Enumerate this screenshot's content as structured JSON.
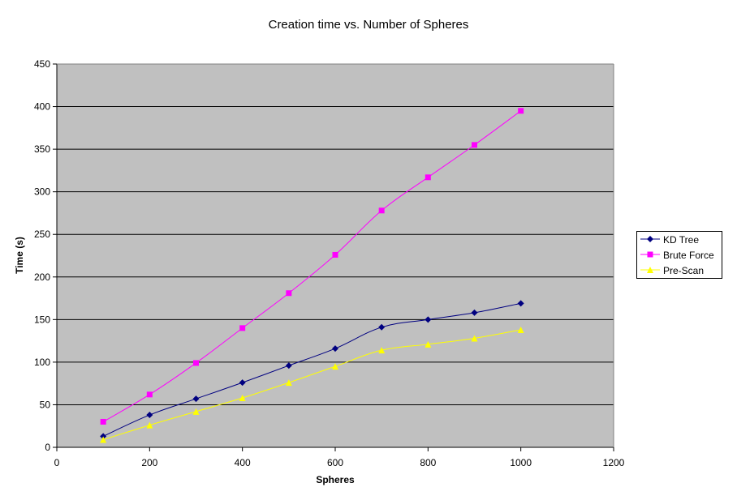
{
  "chart_data": {
    "type": "line",
    "title": "Creation time vs. Number of Spheres",
    "xlabel": "Spheres",
    "ylabel": "Time (s)",
    "xlim": [
      0,
      1200
    ],
    "ylim": [
      0,
      450
    ],
    "x_ticks": [
      0,
      200,
      400,
      600,
      800,
      1000,
      1200
    ],
    "y_ticks": [
      0,
      50,
      100,
      150,
      200,
      250,
      300,
      350,
      400,
      450
    ],
    "grid": "horizontal",
    "legend_position": "right",
    "x": [
      100,
      200,
      300,
      400,
      500,
      600,
      700,
      800,
      900,
      1000
    ],
    "series": [
      {
        "name": "KD Tree",
        "color": "#000080",
        "marker": "diamond",
        "values": [
          13,
          38,
          57,
          76,
          96,
          116,
          141,
          150,
          158,
          169
        ]
      },
      {
        "name": "Brute Force",
        "color": "#ff00ff",
        "marker": "square",
        "values": [
          30,
          62,
          99,
          140,
          181,
          226,
          278,
          317,
          355,
          395
        ]
      },
      {
        "name": "Pre-Scan",
        "color": "#ffff00",
        "marker": "triangle",
        "values": [
          9,
          26,
          42,
          58,
          76,
          95,
          114,
          121,
          128,
          138
        ]
      }
    ]
  }
}
